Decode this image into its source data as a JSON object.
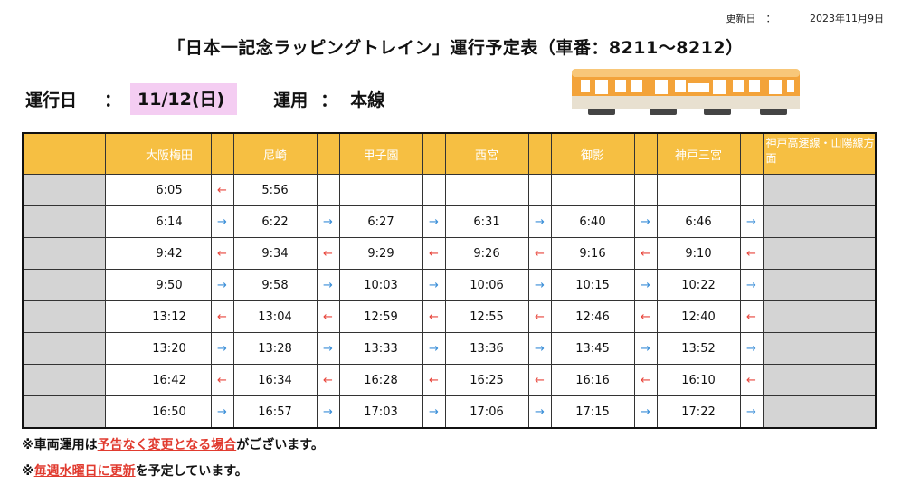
{
  "updated": {
    "label": "更新日　：",
    "date": "2023年11月9日"
  },
  "title": "「日本一記念ラッピングトレイン」運行予定表（車番：8211～8212）",
  "operation": {
    "date_label": "運行日",
    "colon": "：",
    "date": "11/12(日)",
    "use_label": "運用",
    "use_colon": "：",
    "use_value": "本線"
  },
  "colors": {
    "header": "#f6bf42",
    "date_highlight": "#f4cdf2",
    "arrow_left": "#e8463c",
    "arrow_right": "#3a8ed8",
    "emphasis": "#e13b2f"
  },
  "stations": [
    "大阪梅田",
    "尼崎",
    "甲子園",
    "西宮",
    "御影",
    "神戸三宮"
  ],
  "direction_header": "神戸高速線・山陽線方面",
  "icons": {
    "left": "←",
    "right": "→"
  },
  "rows": [
    {
      "times": [
        "6:05",
        "5:56",
        "",
        "",
        "",
        ""
      ],
      "arrows": [
        "left",
        "",
        "",
        "",
        "",
        ""
      ]
    },
    {
      "times": [
        "6:14",
        "6:22",
        "6:27",
        "6:31",
        "6:40",
        "6:46"
      ],
      "arrows": [
        "right",
        "right",
        "right",
        "right",
        "right",
        "right"
      ]
    },
    {
      "times": [
        "9:42",
        "9:34",
        "9:29",
        "9:26",
        "9:16",
        "9:10"
      ],
      "arrows": [
        "left",
        "left",
        "left",
        "left",
        "left",
        "left"
      ]
    },
    {
      "times": [
        "9:50",
        "9:58",
        "10:03",
        "10:06",
        "10:15",
        "10:22"
      ],
      "arrows": [
        "right",
        "right",
        "right",
        "right",
        "right",
        "right"
      ]
    },
    {
      "times": [
        "13:12",
        "13:04",
        "12:59",
        "12:55",
        "12:46",
        "12:40"
      ],
      "arrows": [
        "left",
        "left",
        "left",
        "left",
        "left",
        "left"
      ]
    },
    {
      "times": [
        "13:20",
        "13:28",
        "13:33",
        "13:36",
        "13:45",
        "13:52"
      ],
      "arrows": [
        "right",
        "right",
        "right",
        "right",
        "right",
        "right"
      ]
    },
    {
      "times": [
        "16:42",
        "16:34",
        "16:28",
        "16:25",
        "16:16",
        "16:10"
      ],
      "arrows": [
        "left",
        "left",
        "left",
        "left",
        "left",
        "left"
      ]
    },
    {
      "times": [
        "16:50",
        "16:57",
        "17:03",
        "17:06",
        "17:15",
        "17:22"
      ],
      "arrows": [
        "right",
        "right",
        "right",
        "right",
        "right",
        "right"
      ]
    }
  ],
  "notes": {
    "note1": {
      "prefix": "※車両運用は",
      "emphasis": "予告なく変更となる場合",
      "suffix": "がございます。"
    },
    "note2": {
      "prefix": "※",
      "emphasis": "毎週水曜日に更新",
      "suffix": "を予定しています。"
    }
  }
}
